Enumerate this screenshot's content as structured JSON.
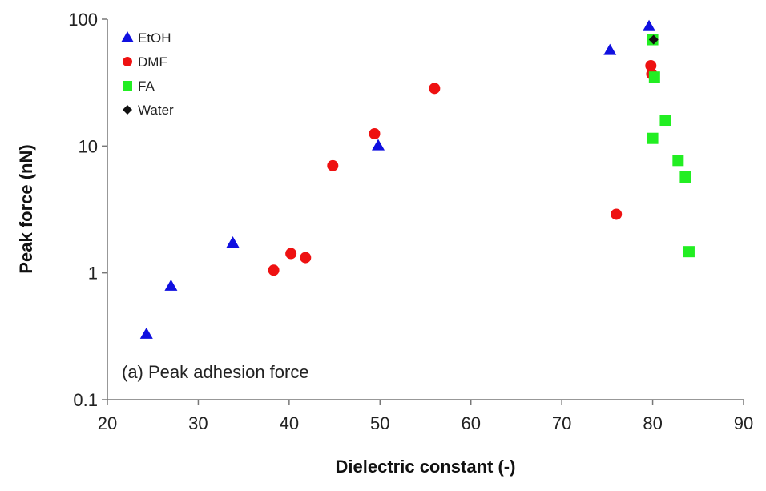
{
  "chart_data": {
    "type": "scatter",
    "xlabel": "Dielectric constant (-)",
    "ylabel": "Peak force (nN)",
    "xlim": [
      20,
      90
    ],
    "ylim": [
      0.1,
      100
    ],
    "yscale": "log",
    "grid": false,
    "legend_position": "top-left",
    "x_ticks": [
      20,
      30,
      40,
      50,
      60,
      70,
      80,
      90
    ],
    "y_ticks": [
      0.1,
      1,
      10,
      100
    ],
    "x_tick_labels": [
      "20",
      "30",
      "40",
      "50",
      "60",
      "70",
      "80",
      "90"
    ],
    "y_tick_labels": [
      "0.1",
      "1",
      "10",
      "100"
    ],
    "annotation": "(a) Peak adhesion force",
    "series": [
      {
        "name": "EtOH",
        "marker": "triangle",
        "color": "#1010e0",
        "points": [
          {
            "x": 24.3,
            "y": 0.33
          },
          {
            "x": 27.0,
            "y": 0.79
          },
          {
            "x": 33.8,
            "y": 1.73
          },
          {
            "x": 49.8,
            "y": 10.1
          },
          {
            "x": 75.3,
            "y": 57
          },
          {
            "x": 79.6,
            "y": 88
          }
        ]
      },
      {
        "name": "DMF",
        "marker": "circle",
        "color": "#ee1111",
        "points": [
          {
            "x": 38.3,
            "y": 1.05
          },
          {
            "x": 40.2,
            "y": 1.42
          },
          {
            "x": 41.8,
            "y": 1.32
          },
          {
            "x": 44.8,
            "y": 7.0
          },
          {
            "x": 49.4,
            "y": 12.5
          },
          {
            "x": 56.0,
            "y": 28.5
          },
          {
            "x": 76.0,
            "y": 2.9
          },
          {
            "x": 79.8,
            "y": 43
          },
          {
            "x": 79.9,
            "y": 37
          }
        ]
      },
      {
        "name": "FA",
        "marker": "square",
        "color": "#22ee22",
        "points": [
          {
            "x": 80.0,
            "y": 69
          },
          {
            "x": 80.2,
            "y": 35
          },
          {
            "x": 81.4,
            "y": 16
          },
          {
            "x": 80.0,
            "y": 11.5
          },
          {
            "x": 82.8,
            "y": 7.7
          },
          {
            "x": 83.6,
            "y": 5.7
          },
          {
            "x": 84.0,
            "y": 1.47
          }
        ]
      },
      {
        "name": "Water",
        "marker": "diamond",
        "color": "#111111",
        "points": [
          {
            "x": 80.1,
            "y": 69
          }
        ]
      }
    ]
  }
}
